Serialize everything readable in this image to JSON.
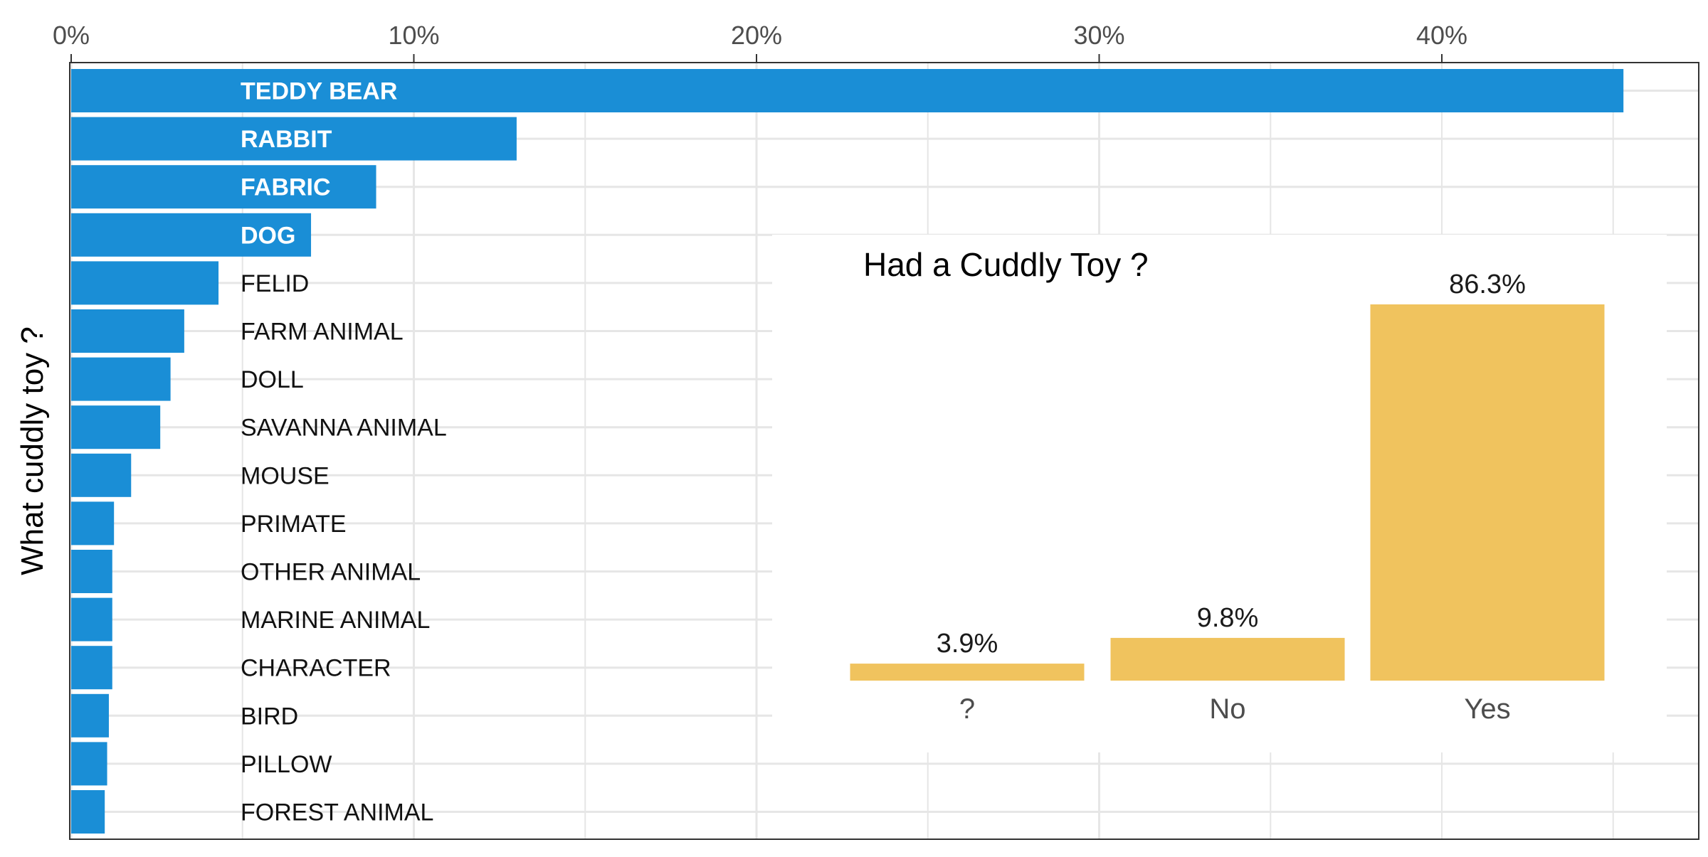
{
  "chart_data": [
    {
      "type": "bar",
      "orientation": "horizontal",
      "ylabel": "What cuddly toy ?",
      "xlim": [
        0,
        0.47
      ],
      "x_ticks": [
        {
          "value": 0,
          "label": "0%"
        },
        {
          "value": 0.1,
          "label": "10%"
        },
        {
          "value": 0.2,
          "label": "20%"
        },
        {
          "value": 0.3,
          "label": "30%"
        },
        {
          "value": 0.4,
          "label": "40%"
        }
      ],
      "grid": true,
      "color": "#1a8ed6",
      "categories": [
        "TEDDY BEAR",
        "RABBIT",
        "FABRIC",
        "DOG",
        "FELID",
        "FARM ANIMAL",
        "DOLL",
        "SAVANNA ANIMAL",
        "MOUSE",
        "PRIMATE",
        "OTHER ANIMAL",
        "MARINE ANIMAL",
        "CHARACTER",
        "BIRD",
        "PILLOW",
        "FOREST ANIMAL"
      ],
      "values": [
        0.453,
        0.13,
        0.089,
        0.07,
        0.043,
        0.033,
        0.029,
        0.026,
        0.0175,
        0.0125,
        0.012,
        0.012,
        0.012,
        0.011,
        0.0105,
        0.0098
      ],
      "bold_categories": [
        "TEDDY BEAR",
        "RABBIT",
        "FABRIC",
        "DOG"
      ]
    },
    {
      "type": "bar",
      "title": "Had a Cuddly Toy ?",
      "categories": [
        "?",
        "No",
        "Yes"
      ],
      "values": [
        0.039,
        0.098,
        0.863
      ],
      "data_labels": [
        "3.9%",
        "9.8%",
        "86.3%"
      ],
      "color": "#f0c35e"
    }
  ]
}
